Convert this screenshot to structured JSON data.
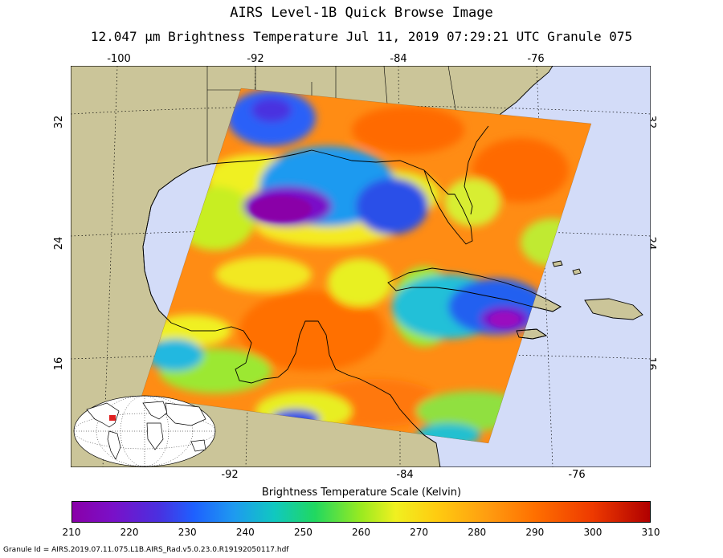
{
  "title": "AIRS Level-1B Quick Browse Image",
  "subtitle": "12.047 μm Brightness Temperature   Jul 11, 2019 07:29:21 UTC  Granule 075",
  "lon_ticks_top": [
    "-100",
    "-92",
    "-84",
    "-76"
  ],
  "lon_ticks_bottom": [
    "-92",
    "-84",
    "-76"
  ],
  "lat_ticks": [
    "32",
    "24",
    "16"
  ],
  "colorbar": {
    "title": "Brightness Temperature Scale (Kelvin)",
    "labels": [
      "210",
      "220",
      "230",
      "240",
      "250",
      "260",
      "270",
      "280",
      "290",
      "300",
      "310"
    ],
    "min": 210,
    "max": 310
  },
  "granule_id": "Granule Id = AIRS.2019.07.11.075.L1B.AIRS_Rad.v5.0.23.0.R19192050117.hdf",
  "colors": {
    "ocean": "#d3dcf8",
    "land": "#cbc599",
    "swath_base": "#ff8c14"
  }
}
